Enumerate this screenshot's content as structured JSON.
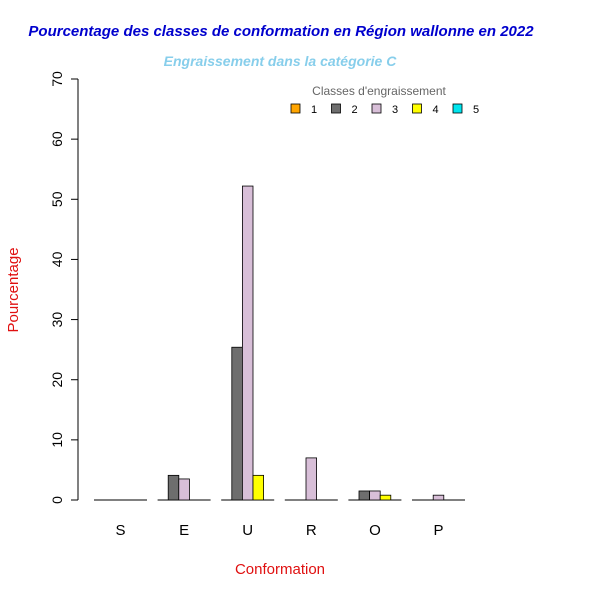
{
  "chart_data": {
    "type": "bar",
    "title": "Pourcentage des classes de conformation en Région wallonne en 2022",
    "subtitle": "Engraissement dans la catégorie C",
    "xlabel": "Conformation",
    "ylabel": "Pourcentage",
    "ylim": [
      0,
      70
    ],
    "yticks": [
      0,
      10,
      20,
      30,
      40,
      50,
      60,
      70
    ],
    "categories": [
      "S",
      "E",
      "U",
      "R",
      "O",
      "P"
    ],
    "legend": {
      "title": "Classes d'engraissement",
      "placement": "top-right"
    },
    "series": [
      {
        "name": "1",
        "color": "#ffa500",
        "values": [
          0,
          0,
          0,
          0,
          0,
          0
        ]
      },
      {
        "name": "2",
        "color": "#6e6e6e",
        "values": [
          0,
          4.1,
          25.4,
          0,
          1.5,
          0
        ]
      },
      {
        "name": "3",
        "color": "#d8bfd8",
        "values": [
          0,
          3.5,
          52.2,
          7.0,
          1.5,
          0.8
        ]
      },
      {
        "name": "4",
        "color": "#ffff00",
        "values": [
          0,
          0,
          4.1,
          0,
          0.8,
          0
        ]
      },
      {
        "name": "5",
        "color": "#00e5ee",
        "values": [
          0,
          0,
          0,
          0,
          0,
          0
        ]
      }
    ],
    "colors": {
      "title": "#0000cd",
      "subtitle": "#87ceeb",
      "axis_labels": "#e01010"
    }
  }
}
